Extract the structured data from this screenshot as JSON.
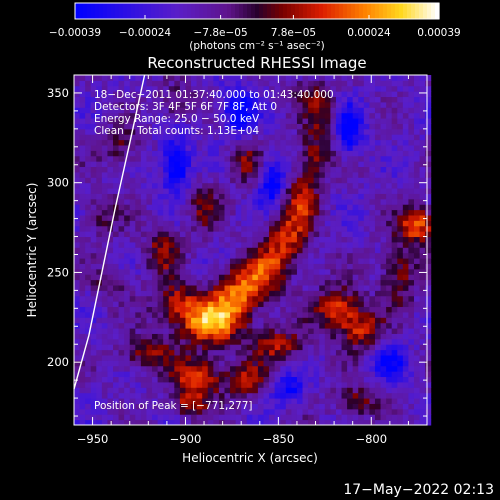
{
  "chart_data": {
    "type": "heatmap",
    "title": "Reconstructed RHESSI Image",
    "xlabel": "Heliocentric X (arcsec)",
    "ylabel": "Heliocentric Y (arcsec)",
    "xlim": [
      -960,
      -770
    ],
    "ylim": [
      165,
      360
    ],
    "x_ticks": [
      {
        "value": -950,
        "label": "−950"
      },
      {
        "value": -900,
        "label": "−900"
      },
      {
        "value": -850,
        "label": "−850"
      },
      {
        "value": -800,
        "label": "−800"
      }
    ],
    "y_ticks": [
      {
        "value": 200,
        "label": "200"
      },
      {
        "value": 250,
        "label": "250"
      },
      {
        "value": 300,
        "label": "300"
      },
      {
        "value": 350,
        "label": "350"
      }
    ],
    "colorbar": {
      "range": [
        -0.00039,
        0.00039
      ],
      "unit_label": "(photons cm⁻² s⁻¹ asec⁻²)",
      "ticks": [
        {
          "value": -0.00039,
          "label": "−0.00039"
        },
        {
          "value": -0.00024,
          "label": "−0.00024"
        },
        {
          "value": -7.8e-05,
          "label": "−7.8e−05"
        },
        {
          "value": 7.8e-05,
          "label": "7.8e−05"
        },
        {
          "value": 0.00024,
          "label": "0.00024"
        },
        {
          "value": 0.00039,
          "label": "0.00039"
        }
      ]
    },
    "info_lines": [
      "18−Dec−2011 01:37:40.000 to 01:43:40.000",
      "Detectors: 3F 4F 5F 6F 7F 8F, Att 0",
      "Energy Range: 25.0 − 50.0 keV",
      "Clean    Total counts: 1.13E+04"
    ],
    "peak_label": "Position of Peak = [−771,277]",
    "peak_position": [
      -771,
      277
    ],
    "limb_curve": [
      [
        -960,
        185
      ],
      [
        -952,
        215
      ],
      [
        -945,
        250
      ],
      [
        -938,
        285
      ],
      [
        -930,
        322
      ],
      [
        -922,
        360
      ]
    ],
    "bright_features": [
      {
        "x": -887,
        "y": 222,
        "amp": 0.00039,
        "sx": 12,
        "sy": 9
      },
      {
        "x": -873,
        "y": 238,
        "amp": 0.0003,
        "sx": 10,
        "sy": 10
      },
      {
        "x": -905,
        "y": 233,
        "amp": 0.00024,
        "sx": 9,
        "sy": 8
      },
      {
        "x": -922,
        "y": 205,
        "amp": 0.00022,
        "sx": 10,
        "sy": 7
      },
      {
        "x": -893,
        "y": 192,
        "amp": 0.0003,
        "sx": 9,
        "sy": 8
      },
      {
        "x": -898,
        "y": 177,
        "amp": 0.00022,
        "sx": 7,
        "sy": 6
      },
      {
        "x": -860,
        "y": 248,
        "amp": 0.00022,
        "sx": 8,
        "sy": 10
      },
      {
        "x": -847,
        "y": 265,
        "amp": 0.00026,
        "sx": 8,
        "sy": 12
      },
      {
        "x": -838,
        "y": 290,
        "amp": 0.00024,
        "sx": 7,
        "sy": 13
      },
      {
        "x": -830,
        "y": 315,
        "amp": 0.0002,
        "sx": 6,
        "sy": 10
      },
      {
        "x": -826,
        "y": 338,
        "amp": 0.00018,
        "sx": 6,
        "sy": 9
      },
      {
        "x": -818,
        "y": 230,
        "amp": 0.0003,
        "sx": 9,
        "sy": 9
      },
      {
        "x": -805,
        "y": 218,
        "amp": 0.00024,
        "sx": 8,
        "sy": 8
      },
      {
        "x": -850,
        "y": 210,
        "amp": 0.00024,
        "sx": 10,
        "sy": 7
      },
      {
        "x": -867,
        "y": 190,
        "amp": 0.00022,
        "sx": 9,
        "sy": 7
      },
      {
        "x": -808,
        "y": 178,
        "amp": 0.00022,
        "sx": 8,
        "sy": 6
      },
      {
        "x": -775,
        "y": 277,
        "amp": 0.00036,
        "sx": 7,
        "sy": 7
      },
      {
        "x": -785,
        "y": 250,
        "amp": 0.00022,
        "sx": 7,
        "sy": 12
      },
      {
        "x": -913,
        "y": 262,
        "amp": 0.0002,
        "sx": 7,
        "sy": 10
      },
      {
        "x": -890,
        "y": 287,
        "amp": 0.00018,
        "sx": 6,
        "sy": 10
      },
      {
        "x": -868,
        "y": 312,
        "amp": 0.00018,
        "sx": 6,
        "sy": 9
      },
      {
        "x": -935,
        "y": 320,
        "amp": 0.00016,
        "sx": 7,
        "sy": 9
      },
      {
        "x": -945,
        "y": 282,
        "amp": 0.00016,
        "sx": 7,
        "sy": 8
      },
      {
        "x": -940,
        "y": 245,
        "amp": 0.00014,
        "sx": 7,
        "sy": 7
      },
      {
        "x": -905,
        "y": 345,
        "amp": 0.00016,
        "sx": 7,
        "sy": 7
      },
      {
        "x": -835,
        "y": 350,
        "amp": 0.00014,
        "sx": 7,
        "sy": 6
      },
      {
        "x": -905,
        "y": 310,
        "amp": -0.00036,
        "sx": 5,
        "sy": 10
      },
      {
        "x": -872,
        "y": 340,
        "amp": -0.0003,
        "sx": 6,
        "sy": 9
      },
      {
        "x": -853,
        "y": 300,
        "amp": -0.00032,
        "sx": 5,
        "sy": 9
      },
      {
        "x": -812,
        "y": 330,
        "amp": -0.0003,
        "sx": 5,
        "sy": 9
      },
      {
        "x": -845,
        "y": 185,
        "amp": -0.00024,
        "sx": 6,
        "sy": 6
      },
      {
        "x": -790,
        "y": 200,
        "amp": -0.00022,
        "sx": 6,
        "sy": 7
      }
    ]
  },
  "footer": {
    "timestamp": "17−May−2022 02:13"
  }
}
